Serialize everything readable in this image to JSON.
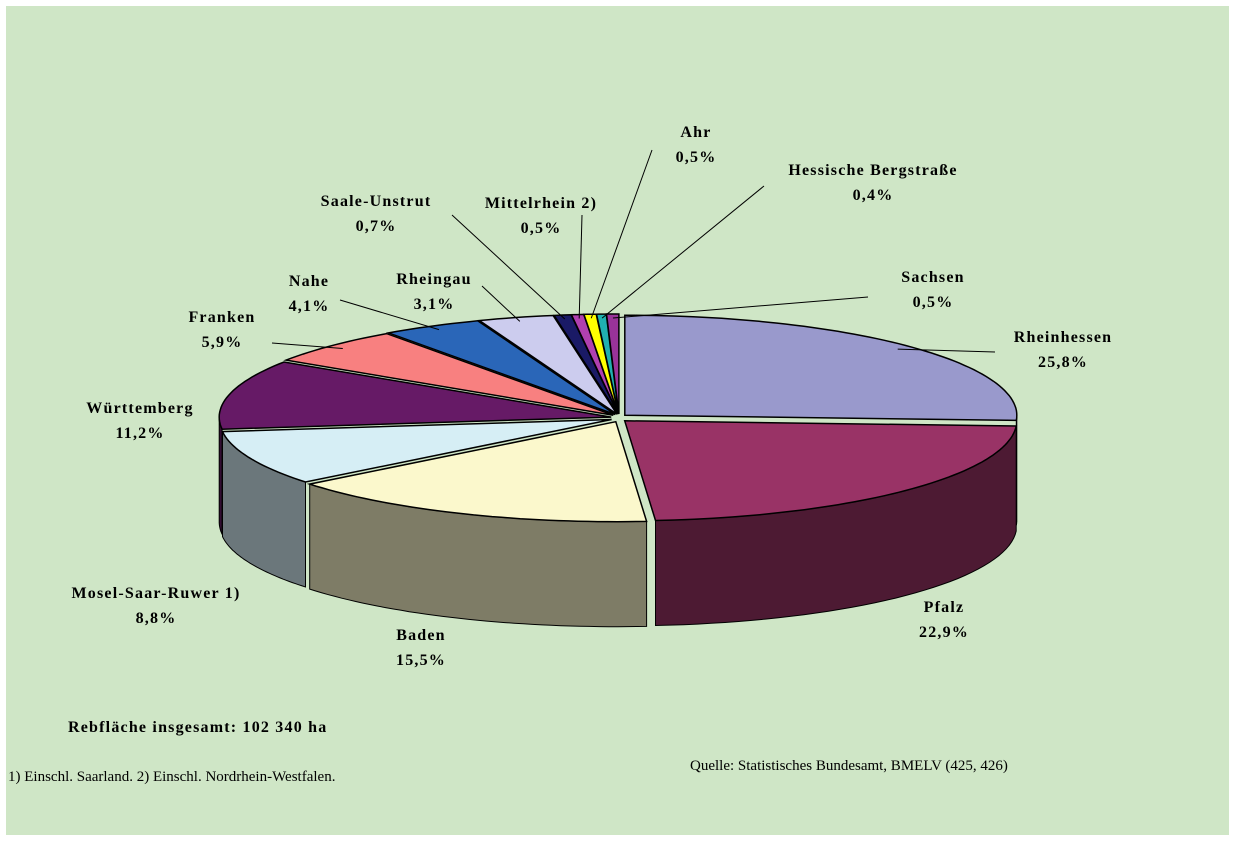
{
  "chart_data": {
    "type": "pie",
    "categories": [
      "Rheinhessen",
      "Pfalz",
      "Baden",
      "Mosel-Saar-Ruwer 1)",
      "Württemberg",
      "Franken",
      "Nahe",
      "Rheingau",
      "Saale-Unstrut",
      "Mittelrhein 2)",
      "Ahr",
      "Hessische Bergstraße",
      "Sachsen"
    ],
    "values": [
      25.8,
      22.9,
      15.5,
      8.8,
      11.2,
      5.9,
      4.1,
      3.1,
      0.7,
      0.5,
      0.5,
      0.4,
      0.5
    ],
    "value_labels": [
      "25,8%",
      "22,9%",
      "15,5%",
      "8,8%",
      "11,2%",
      "5,9%",
      "4,1%",
      "3,1%",
      "0,7%",
      "0,5%",
      "0,5%",
      "0,4%",
      "0,5%"
    ],
    "colors": [
      "#9999cc",
      "#993366",
      "#fbf8cc",
      "#d6eef5",
      "#661a66",
      "#f88080",
      "#2a66b8",
      "#ccccee",
      "#1a1a66",
      "#b040b0",
      "#ffff00",
      "#20b0b0",
      "#993399"
    ],
    "total_note": "Rebfläche insgesamt: 102 340 ha",
    "footnote": "1) Einschl.  Saarland.  2) Einschl. Nordrhein-Westfalen.",
    "source": "Quelle: Statistisches Bundesamt, BMELV (425, 426)"
  }
}
